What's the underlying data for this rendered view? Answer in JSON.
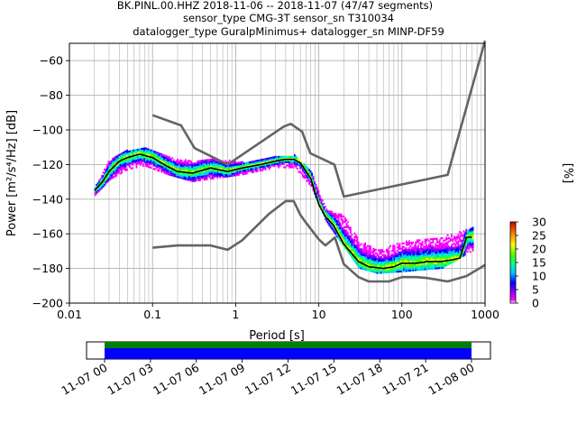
{
  "title": {
    "line1": "BK.PINL.00.HHZ   2018-11-06 -- 2018-11-07  (47/47 segments)",
    "line2": "sensor_type CMG-3T sensor_sn T310034",
    "line3": "datalogger_type GuralpMinimus+ datalogger_sn MINP-DF59"
  },
  "colorbar": {
    "label": "[%]",
    "ticks": [
      "0",
      "5",
      "10",
      "15",
      "20",
      "25",
      "30"
    ],
    "range": [
      0,
      30
    ]
  },
  "timeline": {
    "ticks": [
      "11-07 00",
      "11-07 03",
      "11-07 06",
      "11-07 09",
      "11-07 12",
      "11-07 15",
      "11-07 18",
      "11-07 21",
      "11-08 00"
    ],
    "bars": [
      {
        "name": "segments-coverage",
        "color": "#008000"
      },
      {
        "name": "data-coverage",
        "color": "#0000ff"
      }
    ],
    "coverage_hours": [
      0,
      24
    ]
  },
  "colors": {
    "model_lines": "#646464",
    "mode_line": "#000000",
    "grid": "#b0b0b0"
  },
  "chart_data": {
    "type": "heatmap",
    "title": "BK.PINL.00.HHZ   2018-11-06 -- 2018-11-07  (47/47 segments)",
    "xlabel": "Period [s]",
    "ylabel": "Power [m²/s⁴/Hz] [dB]",
    "x_scale": "log",
    "xlim": [
      0.01,
      1000
    ],
    "ylim": [
      -200,
      -50
    ],
    "xticks": [
      "0.01",
      "0.1",
      "1",
      "10",
      "100",
      "1000"
    ],
    "yticks": [
      "−200",
      "−180",
      "−160",
      "−140",
      "−120",
      "−100",
      "−80",
      "−60"
    ],
    "ytick_values": [
      -200,
      -180,
      -160,
      -140,
      -120,
      -100,
      -80,
      -60
    ],
    "xtick_values": [
      0.01,
      0.1,
      1,
      10,
      100,
      1000
    ],
    "grid": true,
    "series": [
      {
        "role": "nhnm",
        "x": [
          0.1,
          0.22,
          0.32,
          0.8,
          3.8,
          4.6,
          6.3,
          7.9,
          15.4,
          20,
          354.8,
          10000
        ],
        "y": [
          -91.5,
          -97.4,
          -110.5,
          -120,
          -98,
          -96.5,
          -101,
          -113.5,
          -120,
          -138.5,
          -126,
          -48.5
        ]
      },
      {
        "role": "nlnm",
        "x": [
          0.1,
          0.2,
          0.5,
          0.8,
          1.2,
          2.5,
          4,
          5,
          6,
          7,
          10,
          12,
          15.6,
          20,
          30,
          40,
          55,
          70,
          100,
          150,
          200,
          354.8,
          600,
          1000
        ],
        "y": [
          -168,
          -166.7,
          -166.7,
          -169.2,
          -163.7,
          -148.6,
          -141.1,
          -141.1,
          -149,
          -153.5,
          -163.2,
          -166.7,
          -162.1,
          -177.5,
          -185,
          -187.5,
          -187.5,
          -187.5,
          -185,
          -185,
          -185.5,
          -187.5,
          -184.4,
          -178
        ]
      },
      {
        "role": "mode",
        "x": [
          0.02,
          0.025,
          0.03,
          0.04,
          0.05,
          0.07,
          0.1,
          0.15,
          0.2,
          0.3,
          0.5,
          0.8,
          1.2,
          2,
          3,
          4,
          5,
          6,
          8,
          10,
          12,
          15,
          20,
          30,
          40,
          60,
          80,
          100,
          150,
          200,
          300,
          400,
          500,
          600,
          700
        ],
        "y": [
          -135,
          -130,
          -124,
          -118,
          -116,
          -114,
          -116,
          -121,
          -124,
          -125,
          -122,
          -124,
          -122,
          -120,
          -118,
          -117,
          -117,
          -119,
          -128,
          -143,
          -150,
          -155,
          -166,
          -176,
          -179,
          -180,
          -179,
          -177,
          -177,
          -176,
          -176,
          -175,
          -174,
          -162,
          -162
        ]
      }
    ],
    "histogram_spread_db": [
      {
        "x": 0.02,
        "lo": -138,
        "hi": -133
      },
      {
        "x": 0.03,
        "lo": -129,
        "hi": -117
      },
      {
        "x": 0.05,
        "lo": -123,
        "hi": -112
      },
      {
        "x": 0.08,
        "lo": -121,
        "hi": -110
      },
      {
        "x": 0.15,
        "lo": -126,
        "hi": -116
      },
      {
        "x": 0.3,
        "lo": -130,
        "hi": -118
      },
      {
        "x": 0.6,
        "lo": -128,
        "hi": -117
      },
      {
        "x": 1.2,
        "lo": -126,
        "hi": -119
      },
      {
        "x": 3,
        "lo": -122,
        "hi": -116
      },
      {
        "x": 5,
        "lo": -122,
        "hi": -115
      },
      {
        "x": 8,
        "lo": -133,
        "hi": -124
      },
      {
        "x": 12,
        "lo": -153,
        "hi": -146
      },
      {
        "x": 20,
        "lo": -168,
        "hi": -150
      },
      {
        "x": 30,
        "lo": -180,
        "hi": -164
      },
      {
        "x": 50,
        "lo": -183,
        "hi": -170
      },
      {
        "x": 100,
        "lo": -182,
        "hi": -165
      },
      {
        "x": 300,
        "lo": -180,
        "hi": -162
      },
      {
        "x": 700,
        "lo": -170,
        "hi": -157
      }
    ]
  }
}
